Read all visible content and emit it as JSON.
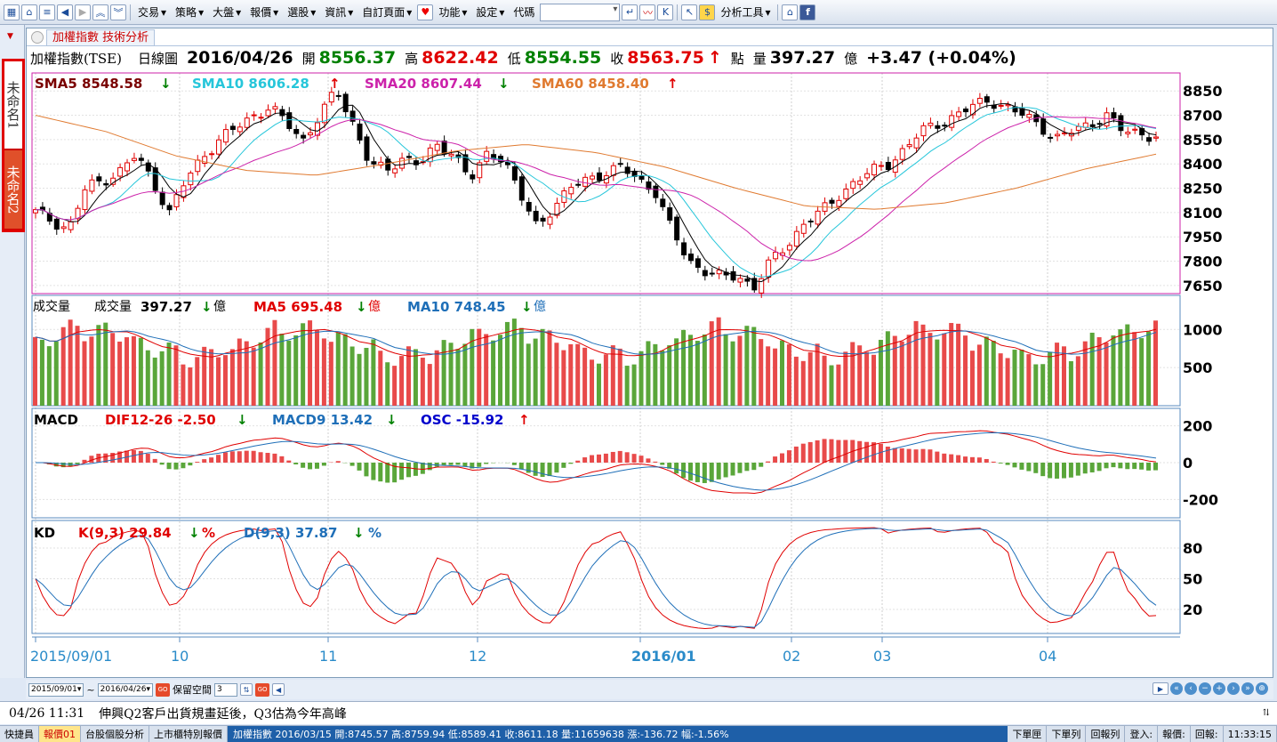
{
  "toolbar": {
    "menus": [
      "交易",
      "策略",
      "大盤",
      "報價",
      "選股",
      "資訊",
      "自訂頁面",
      "功能",
      "設定",
      "代碼",
      "分析工具"
    ]
  },
  "leftbar": {
    "tab1": "未命名1",
    "tab2": "未命名2"
  },
  "tab": {
    "label": "加權指數 技術分析"
  },
  "info": {
    "symbol": "加權指數(TSE)",
    "period": "日線圖",
    "date": "2016/04/26",
    "open_label": "開",
    "open": "8556.37",
    "high_label": "高",
    "high": "8622.42",
    "low_label": "低",
    "low": "8554.55",
    "close_label": "收",
    "close": "8563.75",
    "close_arrow": "↑",
    "unit_pt": "點",
    "vol_label": "量",
    "vol": "397.27",
    "vol_unit": "億",
    "change": "+3.47 (+0.04%)"
  },
  "panels": {
    "price": {
      "sma5": "SMA5 8548.58",
      "sma10": "SMA10 8606.28",
      "sma20": "SMA20 8607.44",
      "sma60": "SMA60 8458.40",
      "arrow_down": "↓",
      "arrow_up": "↑",
      "ticks": [
        "8850",
        "8700",
        "8550",
        "8400",
        "8250",
        "8100",
        "7950",
        "7800",
        "7650"
      ],
      "colors": {
        "sma5": "#000000",
        "sma10": "#26c6da",
        "sma20": "#cc22aa",
        "sma60": "#e07a30"
      }
    },
    "volume": {
      "title": "成交量",
      "label": "成交量",
      "value": "397.27",
      "unit": "億",
      "ma5": "MA5 695.48",
      "ma10": "MA10 748.45",
      "ticks": [
        "1000",
        "500"
      ]
    },
    "macd": {
      "title": "MACD",
      "dif": "DIF12-26 -2.50",
      "macd9": "MACD9 13.42",
      "osc": "OSC -15.92",
      "ticks": [
        "200",
        "0",
        "-200"
      ]
    },
    "kd": {
      "title": "KD",
      "k": "K(9,3) 29.84",
      "d": "D(9,3) 37.87",
      "pct": "%",
      "ticks": [
        "80",
        "50",
        "20"
      ]
    }
  },
  "xaxis": {
    "labels": [
      "2015/09/01",
      "10",
      "11",
      "12",
      "2016/01",
      "02",
      "03",
      "04"
    ]
  },
  "range": {
    "from": "2015/09/01",
    "to": "2016/04/26",
    "sep": "~",
    "keep_label": "保留空間",
    "keep_value": "3"
  },
  "news": {
    "time": "04/26 11:31",
    "headline": "伸興Q2客戶出貨規畫延後，Q3估為今年高峰"
  },
  "status": {
    "items": [
      "快捷員",
      "報價01",
      "台股個股分析",
      "上市櫃特別報價"
    ],
    "ticker": "加權指數 2016/03/15 開:8745.57 高:8759.94 低:8589.41 收:8611.18 量:11659638 漲:-136.72 幅:-1.56%",
    "right": [
      "下單匣",
      "下單列",
      "回報列",
      "登入:",
      "報價:",
      "回報:",
      "11:33:15"
    ]
  },
  "chart_data": {
    "type": "candlestick",
    "title": "加權指數(TSE) 日線圖",
    "x_range": [
      "2015/09/01",
      "2016/04/26"
    ],
    "price_ylim": [
      7600,
      8950
    ],
    "close_approx": [
      8100,
      8050,
      8000,
      8250,
      8300,
      8350,
      8450,
      8300,
      8100,
      8300,
      8450,
      8550,
      8620,
      8700,
      8750,
      8650,
      8550,
      8700,
      8850,
      8650,
      8400,
      8350,
      8450,
      8400,
      8500,
      8480,
      8300,
      8450,
      8450,
      8200,
      8000,
      8150,
      8250,
      8300,
      8350,
      8380,
      8300,
      8250,
      8000,
      7800,
      7750,
      7700,
      7700,
      7650,
      7800,
      7900,
      8050,
      8100,
      8200,
      8300,
      8350,
      8400,
      8500,
      8600,
      8650,
      8700,
      8750,
      8800,
      8750,
      8700,
      8650,
      8550,
      8600,
      8650,
      8700,
      8600,
      8600,
      8560
    ],
    "sma60_approx": [
      8700,
      8600,
      8450,
      8360,
      8330,
      8400,
      8480,
      8520,
      8470,
      8380,
      8250,
      8140,
      8120,
      8160,
      8250,
      8370,
      8460
    ],
    "volume_ylim": [
      0,
      1400
    ],
    "macd_ylim": [
      -300,
      300
    ],
    "kd_ylim": [
      0,
      100
    ]
  }
}
